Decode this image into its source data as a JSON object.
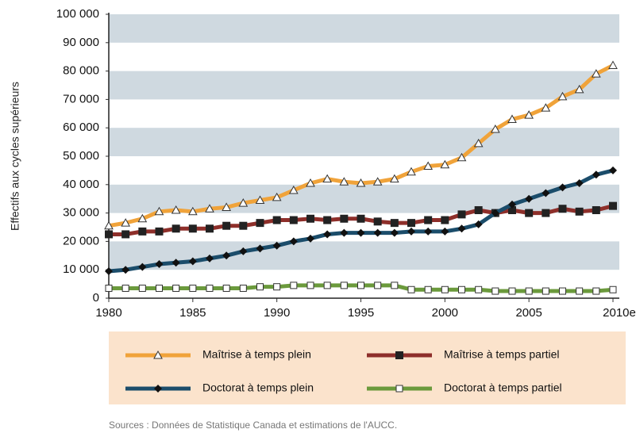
{
  "chart_data": {
    "type": "line",
    "y_label": "Effectifs aux cycles supérieurs",
    "source": "Sources  : Données de Statistique Canada et estimations de l'AUCC.",
    "x": [
      1980,
      1981,
      1982,
      1983,
      1984,
      1985,
      1986,
      1987,
      1988,
      1989,
      1990,
      1991,
      1992,
      1993,
      1994,
      1995,
      1996,
      1997,
      1998,
      1999,
      2000,
      2001,
      2002,
      2003,
      2004,
      2005,
      2006,
      2007,
      2008,
      2009,
      2010
    ],
    "xlim": [
      1980,
      2010
    ],
    "xticks": [
      1980,
      1985,
      1990,
      1995,
      2000,
      2005,
      {
        "value": 2010,
        "label": "2010e"
      }
    ],
    "ylim": [
      0,
      100000
    ],
    "yticks": [
      0,
      {
        "value": 10000,
        "label": "10 000"
      },
      {
        "value": 20000,
        "label": "20 000"
      },
      {
        "value": 30000,
        "label": "30 000"
      },
      {
        "value": 40000,
        "label": "40 000"
      },
      {
        "value": 50000,
        "label": "50 000"
      },
      {
        "value": 60000,
        "label": "60 000"
      },
      {
        "value": 70000,
        "label": "70 000"
      },
      {
        "value": 80000,
        "label": "80 000"
      },
      {
        "value": 90000,
        "label": "90 000"
      },
      {
        "value": 100000,
        "label": "100 000"
      }
    ],
    "bands": true,
    "band_color": "#cfd9e0",
    "legend_color": "#fbe3cc",
    "series": [
      {
        "name": "Maîtrise  à temps plein",
        "color": "#f0a33a",
        "marker": "triangle",
        "values": [
          25500,
          26500,
          28000,
          30500,
          31000,
          30500,
          31500,
          32000,
          33500,
          34500,
          35500,
          38000,
          40500,
          42000,
          41000,
          40500,
          41000,
          42000,
          44500,
          46500,
          47000,
          49500,
          54500,
          59500,
          63000,
          64500,
          67000,
          71000,
          73500,
          79000,
          82000
        ]
      },
      {
        "name": "Maîtrise  à temps partiel",
        "color": "#8e2f2a",
        "marker": "square",
        "values": [
          22500,
          22500,
          23500,
          23500,
          24500,
          24500,
          24500,
          25500,
          25500,
          26500,
          27500,
          27500,
          28000,
          27500,
          28000,
          28000,
          27000,
          26500,
          26500,
          27500,
          27500,
          29500,
          31000,
          30000,
          31000,
          30000,
          30000,
          31500,
          30500,
          31000,
          32500
        ]
      },
      {
        "name": "Doctorat  à temps plein",
        "color": "#1b4d6b",
        "marker": "diamond",
        "values": [
          9500,
          10000,
          11000,
          12000,
          12500,
          13000,
          14000,
          15000,
          16500,
          17500,
          18500,
          20000,
          21000,
          22500,
          23000,
          23000,
          23000,
          23000,
          23500,
          23500,
          23500,
          24500,
          26000,
          30000,
          33000,
          35000,
          37000,
          39000,
          40500,
          43500,
          45000
        ]
      },
      {
        "name": "Doctorat  à temps partiel",
        "color": "#6b9a3c",
        "marker": "open-square",
        "values": [
          3500,
          3500,
          3500,
          3500,
          3500,
          3500,
          3500,
          3500,
          3500,
          4000,
          4000,
          4500,
          4500,
          4500,
          4500,
          4500,
          4500,
          4500,
          3000,
          3000,
          3000,
          3000,
          3000,
          2500,
          2500,
          2500,
          2500,
          2500,
          2500,
          2500,
          3000
        ]
      }
    ]
  }
}
